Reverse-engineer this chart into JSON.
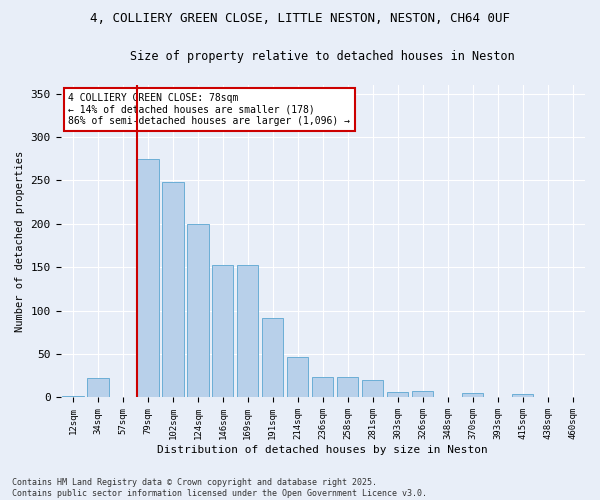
{
  "title_line1": "4, COLLIERY GREEN CLOSE, LITTLE NESTON, NESTON, CH64 0UF",
  "title_line2": "Size of property relative to detached houses in Neston",
  "xlabel": "Distribution of detached houses by size in Neston",
  "ylabel": "Number of detached properties",
  "bins": [
    "12sqm",
    "34sqm",
    "57sqm",
    "79sqm",
    "102sqm",
    "124sqm",
    "146sqm",
    "169sqm",
    "191sqm",
    "214sqm",
    "236sqm",
    "258sqm",
    "281sqm",
    "303sqm",
    "326sqm",
    "348sqm",
    "370sqm",
    "393sqm",
    "415sqm",
    "438sqm",
    "460sqm"
  ],
  "values": [
    2,
    22,
    0,
    275,
    248,
    200,
    153,
    153,
    91,
    47,
    24,
    24,
    20,
    6,
    7,
    0,
    5,
    0,
    4,
    0,
    0
  ],
  "bar_color": "#b8d0ea",
  "bar_edge_color": "#6baed6",
  "annotation_text": "4 COLLIERY GREEN CLOSE: 78sqm\n← 14% of detached houses are smaller (178)\n86% of semi-detached houses are larger (1,096) →",
  "annotation_box_color": "#ffffff",
  "annotation_box_edge": "#cc0000",
  "vline_color": "#cc0000",
  "background_color": "#e8eef8",
  "grid_color": "#ffffff",
  "footer": "Contains HM Land Registry data © Crown copyright and database right 2025.\nContains public sector information licensed under the Open Government Licence v3.0.",
  "ylim": [
    0,
    360
  ],
  "yticks": [
    0,
    50,
    100,
    150,
    200,
    250,
    300,
    350
  ],
  "vline_bin_idx": 3
}
